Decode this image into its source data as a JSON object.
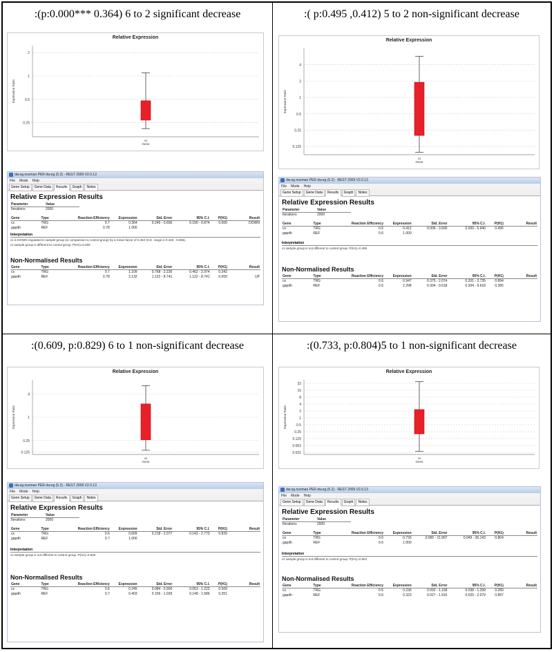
{
  "window_title": "dw.eg.nozman PER dw.eg (5.2) - REST 2009 V2.0.13",
  "menu": [
    "File",
    "Mode",
    "Help"
  ],
  "tabs": [
    "Gene Setup",
    "Gene Data",
    "Results",
    "Graph",
    "Notes"
  ],
  "active_tab": "Results",
  "relative_heading": "Relative Expression Results",
  "nonnorm_heading": "Non-Normalised Results",
  "param_header": [
    "Parameter",
    "Value"
  ],
  "iterations_label": "Iterations",
  "iterations_value": "2000",
  "table_header": [
    "Gene",
    "Type",
    "Reaction Efficiency",
    "Expression",
    "Std. Error",
    "95% C.I.",
    "P(H1)",
    "Result"
  ],
  "interp_heading": "Interpretation",
  "chart_data": [
    {
      "type": "box",
      "title": "Relative Expression",
      "caption": ":(p:0.000*** 0.364) 6 to 2 significant decrease",
      "xlabel": "cs",
      "xsub": "Gene",
      "ylabel": "Expression Ratio",
      "yticks": [
        "2",
        "1",
        "0.5",
        "0.25"
      ],
      "yscale_log2": [
        -2.6,
        1.3
      ],
      "box": {
        "whisker_low": 0.21,
        "q1": 0.27,
        "q3": 0.48,
        "whisker_high": 1.1
      },
      "relative_rows": [
        [
          "cs",
          "TRG",
          "0.7",
          "0.364",
          "0.245 - 0.656",
          "0.190 - 0.874",
          "0.000",
          "DOWN"
        ],
        [
          "gapdh",
          "REF",
          "0.78",
          "1.000",
          "",
          "",
          "",
          ""
        ]
      ],
      "interpretation": [
        "cs is DOWN-regulated in sample group (in comparison to control group) by a mean factor of 0.364 (S.E. range is 0.245 - 0.656).",
        "cs sample group is different to control group. P(H1)=0.000"
      ],
      "nonnorm_rows": [
        [
          "cs",
          "TRG",
          "0.7",
          "1.109",
          "0.768 - 2.230",
          "0.462 - 2.974",
          "0.342",
          ""
        ],
        [
          "gapdh",
          "REF",
          "0.78",
          "3.132",
          "1.122 - 8.741",
          "1.122 - 8.741",
          "0.000",
          "UP"
        ]
      ]
    },
    {
      "type": "box",
      "title": "Relative Expression",
      "caption": ":( p:0.495 ,0.412) 5 to 2 non-significant decrease",
      "xlabel": "cs",
      "xsub": "Gene",
      "ylabel": "Expression Ratio",
      "yticks": [
        "4",
        "2",
        "1",
        "0.5",
        "0.25",
        "0.125"
      ],
      "yscale_log2": [
        -3.5,
        3
      ],
      "box": {
        "whisker_low": 0.098,
        "q1": 0.2,
        "q3": 1.9,
        "whisker_high": 5.7
      },
      "relative_rows": [
        [
          "cs",
          "TRG",
          "0.6",
          "0.412",
          "0.006 - 3.500",
          "0.000 - 5.940",
          "0.495",
          ""
        ],
        [
          "gapdh",
          "REF",
          "0.6",
          "1.000",
          "",
          "",
          "",
          ""
        ]
      ],
      "interpretation": [
        "cs sample group is not different to control group. P(H1)=0.495"
      ],
      "nonnorm_rows": [
        [
          "cs",
          "TRG",
          "0.6",
          "0.947",
          "0.375 - 2.074",
          "0.201 - 2.735",
          "0.894",
          ""
        ],
        [
          "gapdh",
          "REF",
          "0.6",
          "2.298",
          "0.304 - 9.618",
          "0.304 - 9.618",
          "0.285",
          ""
        ]
      ]
    },
    {
      "type": "box",
      "title": "Relative Expression",
      "caption": ":(0.609, p:0.829) 6 to 1 non-significant decrease",
      "xlabel": "cs",
      "xsub": "Gene",
      "ylabel": "Expression Ratio",
      "yticks": [
        "4",
        "1",
        "0.25",
        "0.125"
      ],
      "yscale_log2": [
        -3.2,
        3.2
      ],
      "box": {
        "whisker_low": 0.14,
        "q1": 0.26,
        "q3": 2.2,
        "whisker_high": 6.5
      },
      "relative_rows": [
        [
          "cs",
          "TRG",
          "0.6",
          "0.609",
          "0.218 - 2.077",
          "0.142 - 2.773",
          "0.829",
          ""
        ],
        [
          "gapdh",
          "REF",
          "0.7",
          "1.000",
          "",
          "",
          "",
          ""
        ]
      ],
      "interpretation": [
        "cs sample group is not different to control group. P(H1)=0.829"
      ],
      "nonnorm_rows": [
        [
          "cs",
          "TRG",
          "0.6",
          "0.245",
          "0.084 - 0.900",
          "0.053 - 1.223",
          "0.509",
          ""
        ],
        [
          "gapdh",
          "REF",
          "0.7",
          "0.403",
          "0.156 - 1.039",
          "0.148 - 1.586",
          "0.351",
          ""
        ]
      ]
    },
    {
      "type": "box",
      "title": "Relative Expression",
      "caption": ":(0.733, p:0.804)5 to 1 non-significant decrease",
      "xlabel": "cs",
      "xsub": "Gene",
      "ylabel": "Expression Ratio",
      "yticks": [
        "32",
        "16",
        "8",
        "4",
        "2",
        "1",
        "0.5",
        "0.25",
        "0.125",
        "0.063",
        "0.031"
      ],
      "yscale_log2": [
        -5.3,
        5.5
      ],
      "box": {
        "whisker_low": 0.035,
        "q1": 0.2,
        "q3": 2.3,
        "whisker_high": 38
      },
      "relative_rows": [
        [
          "cs",
          "TRG",
          "0.6",
          "0.733",
          "0.065 - 11.907",
          "0.049 - 36.143",
          "0.804",
          ""
        ],
        [
          "gapdh",
          "REF",
          "0.6",
          "1.000",
          "",
          "",
          "",
          ""
        ]
      ],
      "interpretation": [
        "cs sample group is not different to control group. P(H1)=0.804"
      ],
      "nonnorm_rows": [
        [
          "cs",
          "TRG",
          "0.6",
          "0.236",
          "0.092 - 1.158",
          "0.038 - 1.299",
          "0.289",
          ""
        ],
        [
          "gapdh",
          "REF",
          "0.6",
          "0.323",
          "0.027 - 1.915",
          "0.025 - 2.079",
          "0.897",
          ""
        ]
      ]
    }
  ]
}
